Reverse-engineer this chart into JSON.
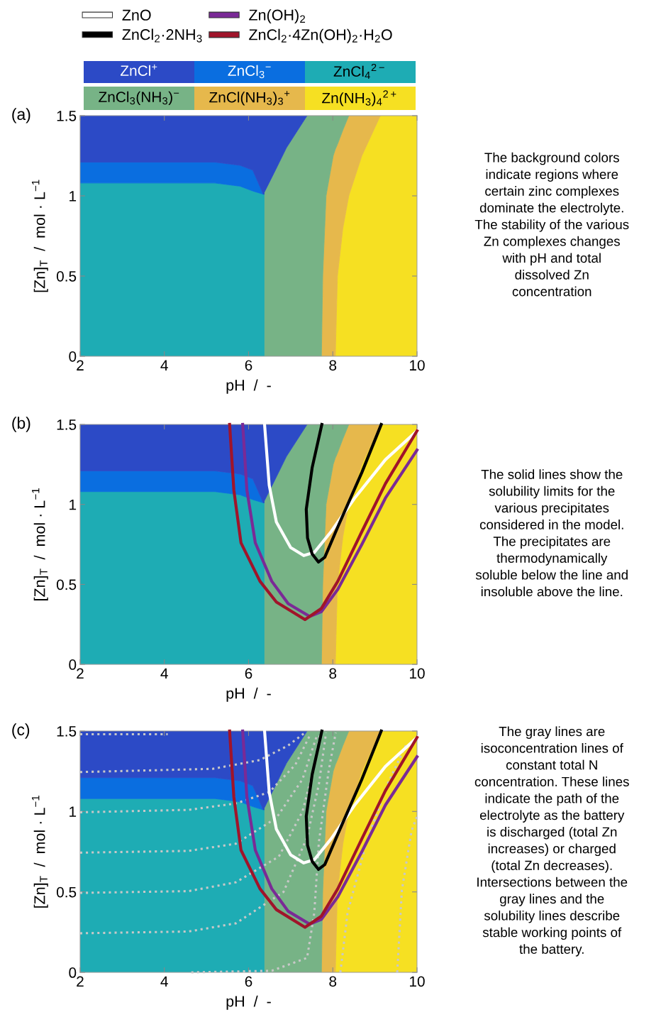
{
  "chart_data": [
    {
      "type": "area",
      "stacked": true,
      "xlabel": "pH  /  -",
      "ylabel": "[Zn]$_{T}$  /  mol · L$^{−1}$",
      "xlim": [
        2,
        10
      ],
      "ylim": [
        0,
        1.5
      ],
      "xticks": [
        2,
        4,
        6,
        8,
        10
      ],
      "yticks": [
        0,
        0.5,
        1,
        1.5
      ],
      "legend": "top",
      "annotations": [
        "(a)",
        "The background colors\nindicate regions where\ncertain zinc complexes\ndominate the electrolyte.\nThe stability of the various\nZn complexes changes\nwith pH and total\ndissolved Zn\nconcentration"
      ],
      "x": [
        2,
        5.2,
        5.8,
        6.1,
        6.35,
        6.37,
        6.37,
        6.6,
        6.9,
        7.39,
        7.73,
        7.76,
        7.84,
        8.01,
        8.06,
        8.11,
        8.24,
        8.38,
        8.69,
        9.13,
        10
      ],
      "series": [
        {
          "name": "Zn(NH$_{3}$)$_{4}$$^{2+}$",
          "color": "#f6e022",
          "values": [
            null,
            null,
            null,
            null,
            null,
            null,
            null,
            null,
            null,
            null,
            null,
            null,
            null,
            null,
            0,
            0.5,
            0.8,
            1.0,
            1.25,
            1.5,
            1.5
          ]
        },
        {
          "name": "ZnCl(NH$_{3}$)$_{3}$$^{+}$",
          "color": "#e6b84c",
          "values": [
            null,
            null,
            null,
            null,
            null,
            null,
            null,
            null,
            null,
            null,
            0,
            0.5,
            1.0,
            1.25,
            1.29,
            0.82,
            0.61,
            0.5,
            0.25,
            0,
            null
          ]
        },
        {
          "name": "ZnCl$_{3}$(NH$_{3}$)$^{−}$",
          "color": "#77b386",
          "values": [
            null,
            null,
            null,
            null,
            null,
            null,
            1.02,
            1.14,
            1.3,
            1.5,
            1.5,
            1.0,
            0.5,
            0.25,
            0.21,
            0.18,
            0.09,
            0,
            null,
            null,
            null
          ]
        },
        {
          "name": "ZnCl$_{4}$$^{2−}$",
          "color": "#1eacb4",
          "values": [
            1.08,
            1.08,
            1.06,
            1.03,
            1.01,
            1.01,
            0,
            null,
            null,
            null,
            null,
            null,
            null,
            null,
            null,
            null,
            null,
            null,
            null,
            null,
            null
          ]
        },
        {
          "name": "ZnCl$_{3}$$^{−}$",
          "color": "#0a6ee0",
          "values": [
            0.13,
            0.13,
            0.13,
            0.13,
            0,
            null,
            null,
            null,
            null,
            null,
            null,
            null,
            null,
            null,
            null,
            null,
            null,
            null,
            null,
            null,
            null
          ]
        },
        {
          "name": "ZnCl$^{+}$",
          "color": "#2c4ac6",
          "values": [
            0.29,
            0.29,
            0.31,
            0.34,
            0.49,
            0.49,
            0.48,
            0.36,
            0.2,
            0,
            null,
            null,
            null,
            null,
            null,
            null,
            null,
            null,
            null,
            null,
            null
          ]
        }
      ]
    },
    {
      "type": "area",
      "stacked": true,
      "xlabel": "pH  /  -",
      "ylabel": "[Zn]$_{T}$  /  mol · L$^{−1}$",
      "xlim": [
        2,
        10
      ],
      "ylim": [
        0,
        1.5
      ],
      "xticks": [
        2,
        4,
        6,
        8,
        10
      ],
      "yticks": [
        0,
        0.5,
        1,
        1.5
      ],
      "legend": "top",
      "annotations": [
        "(b)",
        "The solid lines show the\nsolubility limits for the\nvarious precipitates\nconsidered in the model.\nThe precipitates are\nthermodynamically\nsoluble below the line and\ninsoluble above the line."
      ],
      "x": [
        2,
        5.2,
        5.8,
        6.1,
        6.35,
        6.37,
        6.37,
        6.6,
        6.9,
        7.39,
        7.73,
        7.76,
        7.84,
        8.01,
        8.06,
        8.11,
        8.24,
        8.38,
        8.69,
        9.13,
        10
      ],
      "series": [
        {
          "color": "#f6e022",
          "values": [
            null,
            null,
            null,
            null,
            null,
            null,
            null,
            null,
            null,
            null,
            null,
            null,
            null,
            null,
            0,
            0.5,
            0.8,
            1.0,
            1.25,
            1.5,
            1.5
          ]
        },
        {
          "color": "#e6b84c",
          "values": [
            null,
            null,
            null,
            null,
            null,
            null,
            null,
            null,
            null,
            null,
            0,
            0.5,
            1.0,
            1.25,
            1.29,
            0.82,
            0.61,
            0.5,
            0.25,
            0,
            null
          ]
        },
        {
          "color": "#77b386",
          "values": [
            null,
            null,
            null,
            null,
            null,
            null,
            1.02,
            1.14,
            1.3,
            1.5,
            1.5,
            1.0,
            0.5,
            0.25,
            0.21,
            0.18,
            0.09,
            0,
            null,
            null,
            null
          ]
        },
        {
          "color": "#1eacb4",
          "values": [
            1.08,
            1.08,
            1.06,
            1.03,
            1.01,
            1.01,
            0,
            null,
            null,
            null,
            null,
            null,
            null,
            null,
            null,
            null,
            null,
            null,
            null,
            null,
            null
          ]
        },
        {
          "color": "#0a6ee0",
          "values": [
            0.13,
            0.13,
            0.13,
            0.13,
            0,
            null,
            null,
            null,
            null,
            null,
            null,
            null,
            null,
            null,
            null,
            null,
            null,
            null,
            null,
            null,
            null
          ]
        },
        {
          "color": "#2c4ac6",
          "values": [
            0.29,
            0.29,
            0.31,
            0.34,
            0.49,
            0.49,
            0.48,
            0.36,
            0.2,
            0,
            null,
            null,
            null,
            null,
            null,
            null,
            null,
            null,
            null,
            null,
            null
          ]
        },
        {
          "name": "ZnO",
          "type": "line",
          "color": "#ffffff",
          "x": [
            6.38,
            6.49,
            6.66,
            7.0,
            7.31,
            7.56,
            7.96,
            8.52,
            9.25,
            10
          ],
          "values": [
            1.5,
            1.12,
            0.89,
            0.73,
            0.68,
            0.7,
            0.83,
            1.04,
            1.28,
            1.46
          ]
        },
        {
          "name": "ZnCl$_{2}$·2NH$_{3}$",
          "type": "line",
          "color": "#000000",
          "x": [
            7.74,
            7.51,
            7.37,
            7.4,
            7.51,
            7.66,
            7.81,
            8.12,
            8.69,
            9.15
          ],
          "values": [
            1.5,
            1.23,
            0.97,
            0.79,
            0.69,
            0.64,
            0.67,
            0.86,
            1.2,
            1.5
          ]
        },
        {
          "name": "Zn(OH)$_{2}$",
          "type": "line",
          "color": "#7a2a96",
          "x": [
            5.86,
            5.96,
            6.16,
            6.55,
            6.94,
            7.45,
            7.73,
            8.12,
            8.69,
            9.25,
            10
          ],
          "values": [
            1.5,
            1.09,
            0.76,
            0.52,
            0.38,
            0.3,
            0.33,
            0.47,
            0.75,
            1.04,
            1.34
          ]
        },
        {
          "name": "ZnCl$_{2}$·4Zn(OH)$_{2}$·H$_{2}$O",
          "type": "line",
          "color": "#a0142a",
          "x": [
            5.55,
            5.65,
            5.82,
            6.27,
            6.66,
            7.34,
            7.73,
            8.12,
            8.69,
            9.25,
            10
          ],
          "values": [
            1.5,
            1.09,
            0.76,
            0.52,
            0.39,
            0.28,
            0.35,
            0.52,
            0.83,
            1.13,
            1.46
          ]
        }
      ]
    },
    {
      "type": "area",
      "stacked": true,
      "xlabel": "pH  /  -",
      "ylabel": "[Zn]$_{T}$  /  mol · L$^{−1}$",
      "xlim": [
        2,
        10
      ],
      "ylim": [
        0,
        1.5
      ],
      "xticks": [
        2,
        4,
        6,
        8,
        10
      ],
      "yticks": [
        0,
        0.5,
        1,
        1.5
      ],
      "annotations": [
        "(c)",
        "The gray lines are\nisoconcentration lines of\nconstant total N\nconcentration. These lines\nindicate the path of the\nelectrolyte as the battery\nis discharged (total Zn\nincreases) or charged\n(total Zn decreases).\nIntersections between the\ngray lines and the\nsolubility lines describe\nstable working points of\nthe battery."
      ],
      "x": [
        2,
        5.2,
        5.8,
        6.1,
        6.35,
        6.37,
        6.37,
        6.6,
        6.9,
        7.39,
        7.73,
        7.76,
        7.84,
        8.01,
        8.06,
        8.11,
        8.24,
        8.38,
        8.69,
        9.13,
        10
      ],
      "series": [
        {
          "color": "#f6e022",
          "values": [
            null,
            null,
            null,
            null,
            null,
            null,
            null,
            null,
            null,
            null,
            null,
            null,
            null,
            null,
            0,
            0.5,
            0.8,
            1.0,
            1.25,
            1.5,
            1.5
          ]
        },
        {
          "color": "#e6b84c",
          "values": [
            null,
            null,
            null,
            null,
            null,
            null,
            null,
            null,
            null,
            null,
            0,
            0.5,
            1.0,
            1.25,
            1.29,
            0.82,
            0.61,
            0.5,
            0.25,
            0,
            null
          ]
        },
        {
          "color": "#77b386",
          "values": [
            null,
            null,
            null,
            null,
            null,
            null,
            1.02,
            1.14,
            1.3,
            1.5,
            1.5,
            1.0,
            0.5,
            0.25,
            0.21,
            0.18,
            0.09,
            0,
            null,
            null,
            null
          ]
        },
        {
          "color": "#1eacb4",
          "values": [
            1.08,
            1.08,
            1.06,
            1.03,
            1.01,
            1.01,
            0,
            null,
            null,
            null,
            null,
            null,
            null,
            null,
            null,
            null,
            null,
            null,
            null,
            null,
            null
          ]
        },
        {
          "color": "#0a6ee0",
          "values": [
            0.13,
            0.13,
            0.13,
            0.13,
            0,
            null,
            null,
            null,
            null,
            null,
            null,
            null,
            null,
            null,
            null,
            null,
            null,
            null,
            null,
            null,
            null
          ]
        },
        {
          "color": "#2c4ac6",
          "values": [
            0.29,
            0.29,
            0.31,
            0.34,
            0.49,
            0.49,
            0.48,
            0.36,
            0.2,
            0,
            null,
            null,
            null,
            null,
            null,
            null,
            null,
            null,
            null,
            null,
            null
          ]
        },
        {
          "type": "line",
          "line_style": "dotted",
          "color": "#c8c8c8",
          "x": [
            2,
            3,
            4.08
          ],
          "values": [
            1.48,
            1.48,
            1.48
          ]
        },
        {
          "type": "line",
          "line_style": "dotted",
          "color": "#c8c8c8",
          "x": [
            2,
            5.15,
            6.27,
            6.94,
            7.34
          ],
          "values": [
            1.245,
            1.265,
            1.32,
            1.41,
            1.49
          ]
        },
        {
          "type": "line",
          "line_style": "dotted",
          "color": "#c8c8c8",
          "x": [
            2,
            4.58,
            5.7,
            6.49,
            7.11,
            7.45
          ],
          "values": [
            0.995,
            1.01,
            1.05,
            1.12,
            1.29,
            1.47
          ]
        },
        {
          "type": "line",
          "line_style": "dotted",
          "color": "#c8c8c8",
          "x": [
            2,
            4.58,
            5.7,
            6.66,
            7.28,
            7.62
          ],
          "values": [
            0.744,
            0.755,
            0.8,
            0.96,
            1.2,
            1.47
          ]
        },
        {
          "type": "line",
          "line_style": "dotted",
          "color": "#c8c8c8",
          "x": [
            2,
            4.58,
            5.7,
            6.72,
            7.28,
            7.56,
            7.7
          ],
          "values": [
            0.494,
            0.505,
            0.56,
            0.72,
            1.0,
            1.28,
            1.49
          ]
        },
        {
          "type": "line",
          "line_style": "dotted",
          "color": "#c8c8c8",
          "x": [
            2,
            4.58,
            5.7,
            6.83,
            7.39,
            7.67,
            7.84
          ],
          "values": [
            0.243,
            0.254,
            0.305,
            0.5,
            0.84,
            1.17,
            1.49
          ]
        },
        {
          "type": "line",
          "line_style": "dotted",
          "color": "#c8c8c8",
          "x": [
            4.64,
            6.55,
            7.39,
            7.56,
            7.67,
            7.9,
            8.07
          ],
          "values": [
            0,
            0.01,
            0.09,
            0.37,
            0.81,
            1.25,
            1.49
          ]
        },
        {
          "type": "line",
          "line_style": "dotted",
          "color": "#c8c8c8",
          "x": [
            8.18,
            8.35,
            8.8,
            9.3,
            9.75
          ],
          "values": [
            0,
            0.37,
            0.81,
            1.17,
            1.42
          ]
        },
        {
          "type": "line",
          "line_style": "dotted",
          "color": "#c8c8c8",
          "x": [
            9.53,
            9.64,
            9.87,
            10
          ],
          "values": [
            0,
            0.51,
            0.88,
            0.97
          ]
        },
        {
          "type": "line",
          "color": "#ffffff",
          "x": [
            6.38,
            6.49,
            6.66,
            7.0,
            7.31,
            7.56,
            7.96,
            8.52,
            9.25,
            10
          ],
          "values": [
            1.5,
            1.12,
            0.89,
            0.73,
            0.68,
            0.7,
            0.83,
            1.04,
            1.28,
            1.46
          ]
        },
        {
          "type": "line",
          "color": "#000000",
          "x": [
            7.74,
            7.51,
            7.37,
            7.4,
            7.51,
            7.66,
            7.81,
            8.12,
            8.69,
            9.15
          ],
          "values": [
            1.5,
            1.23,
            0.97,
            0.79,
            0.69,
            0.64,
            0.67,
            0.86,
            1.2,
            1.5
          ]
        },
        {
          "type": "line",
          "color": "#7a2a96",
          "x": [
            5.86,
            5.96,
            6.16,
            6.55,
            6.94,
            7.45,
            7.73,
            8.12,
            8.69,
            9.25,
            10
          ],
          "values": [
            1.5,
            1.09,
            0.76,
            0.52,
            0.38,
            0.3,
            0.33,
            0.47,
            0.75,
            1.04,
            1.34
          ]
        },
        {
          "type": "line",
          "color": "#a0142a",
          "x": [
            5.55,
            5.65,
            5.82,
            6.27,
            6.66,
            7.34,
            7.73,
            8.12,
            8.69,
            9.25,
            10
          ],
          "values": [
            1.5,
            1.09,
            0.76,
            0.52,
            0.39,
            0.28,
            0.35,
            0.52,
            0.83,
            1.13,
            1.46
          ]
        }
      ]
    }
  ]
}
